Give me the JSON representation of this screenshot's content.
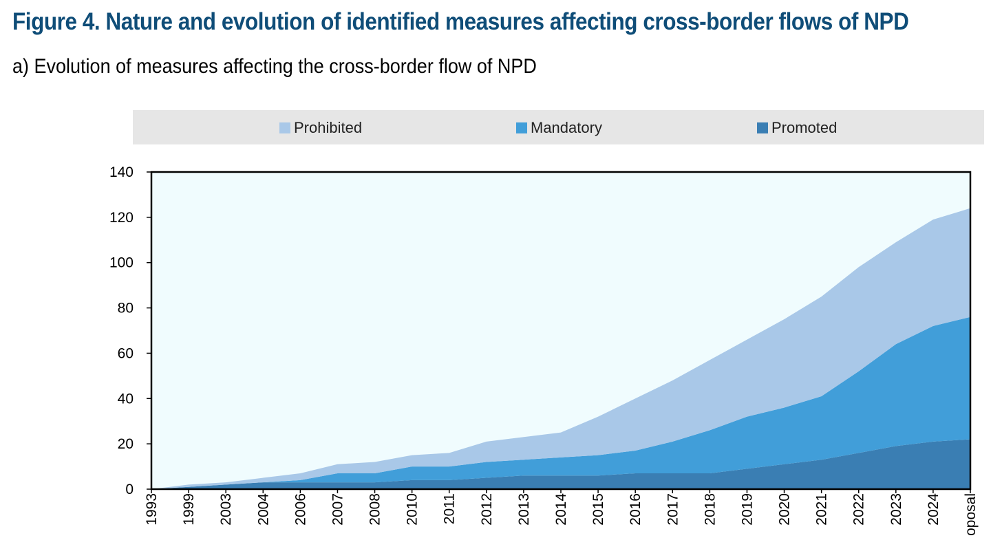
{
  "figure": {
    "title": "Figure 4. Nature and evolution of identified measures affecting cross-border flows of NPD",
    "subtitle": "a) Evolution of measures affecting the cross-border flow of NPD"
  },
  "chart_data": {
    "type": "area",
    "stacked": true,
    "categories": [
      "1993",
      "1999",
      "2003",
      "2004",
      "2006",
      "2007",
      "2008",
      "2010",
      "2011",
      "2012",
      "2013",
      "2014",
      "2015",
      "2016",
      "2017",
      "2018",
      "2019",
      "2020",
      "2021",
      "2022",
      "2023",
      "2024",
      "oposal"
    ],
    "series": [
      {
        "name": "Promoted",
        "color": "#3a7eb3",
        "values": [
          0,
          1,
          2,
          3,
          3,
          3,
          3,
          4,
          4,
          5,
          6,
          6,
          6,
          7,
          7,
          7,
          9,
          11,
          13,
          16,
          19,
          21,
          22
        ]
      },
      {
        "name": "Mandatory",
        "color": "#419ed9",
        "values": [
          0,
          0,
          0,
          0,
          1,
          4,
          4,
          6,
          6,
          7,
          7,
          8,
          9,
          10,
          14,
          19,
          23,
          25,
          28,
          36,
          45,
          51,
          54
        ]
      },
      {
        "name": "Prohibited",
        "color": "#a9c8e8",
        "values": [
          0,
          1,
          1,
          2,
          3,
          4,
          5,
          5,
          6,
          9,
          10,
          11,
          17,
          23,
          27,
          31,
          34,
          39,
          44,
          46,
          45,
          47,
          48
        ]
      }
    ],
    "legend": [
      "Prohibited",
      "Mandatory",
      "Promoted"
    ],
    "legend_position": "top",
    "yticks": [
      "0",
      "20",
      "40",
      "60",
      "80",
      "100",
      "120",
      "140"
    ],
    "ylim": [
      0,
      140
    ],
    "grid": false,
    "plot_background": "#f0fcfe"
  }
}
